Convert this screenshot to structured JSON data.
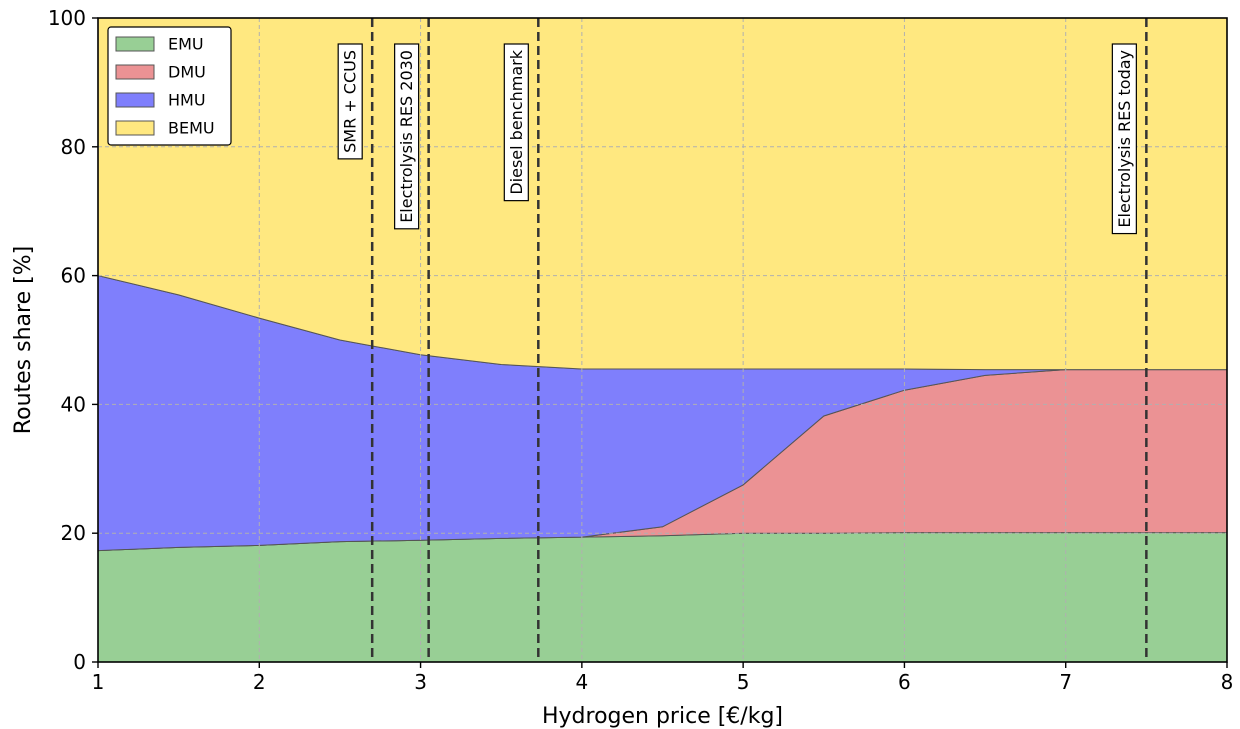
{
  "chart_data": {
    "type": "area",
    "stacked": true,
    "xlabel": "Hydrogen price [€/kg]",
    "ylabel": "Routes share [%]",
    "xlim": [
      1,
      8
    ],
    "ylim": [
      0,
      100
    ],
    "xticks": [
      1,
      2,
      3,
      4,
      5,
      6,
      7,
      8
    ],
    "yticks": [
      0,
      20,
      40,
      60,
      80,
      100
    ],
    "grid": true,
    "legend_position": "top-left",
    "x": [
      1,
      1.5,
      2,
      2.5,
      3,
      3.5,
      4,
      4.5,
      5,
      5.5,
      6,
      6.5,
      7,
      7.5,
      8
    ],
    "series": [
      {
        "name": "EMU",
        "color": "#98cf95",
        "values": [
          17.3,
          17.8,
          18.1,
          18.7,
          18.9,
          19.2,
          19.4,
          19.6,
          20.0,
          20.0,
          20.1,
          20.1,
          20.1,
          20.1,
          20.1
        ]
      },
      {
        "name": "DMU",
        "color": "#eb9294",
        "values": [
          0,
          0,
          0,
          0,
          0,
          0,
          0,
          1.4,
          7.5,
          18.2,
          22.1,
          24.4,
          25.3,
          25.3,
          25.3
        ]
      },
      {
        "name": "HMU",
        "color": "#7f7ffc",
        "values": [
          42.7,
          39.2,
          35.3,
          31.3,
          28.8,
          27.0,
          26.1,
          24.5,
          18.0,
          7.3,
          3.3,
          0.9,
          0,
          0,
          0
        ]
      },
      {
        "name": "BEMU",
        "color": "#ffe880",
        "values": [
          40.0,
          43.0,
          46.6,
          50.0,
          52.3,
          53.8,
          54.5,
          54.5,
          54.5,
          54.5,
          54.5,
          54.6,
          54.6,
          54.6,
          54.6
        ]
      }
    ],
    "annotations": [
      {
        "label": "SMR + CCUS",
        "x": 2.7
      },
      {
        "label": "Electrolysis RES 2030",
        "x": 3.05
      },
      {
        "label": "Diesel benchmark",
        "x": 3.73
      },
      {
        "label": "Electrolysis RES today",
        "x": 7.5
      }
    ]
  }
}
